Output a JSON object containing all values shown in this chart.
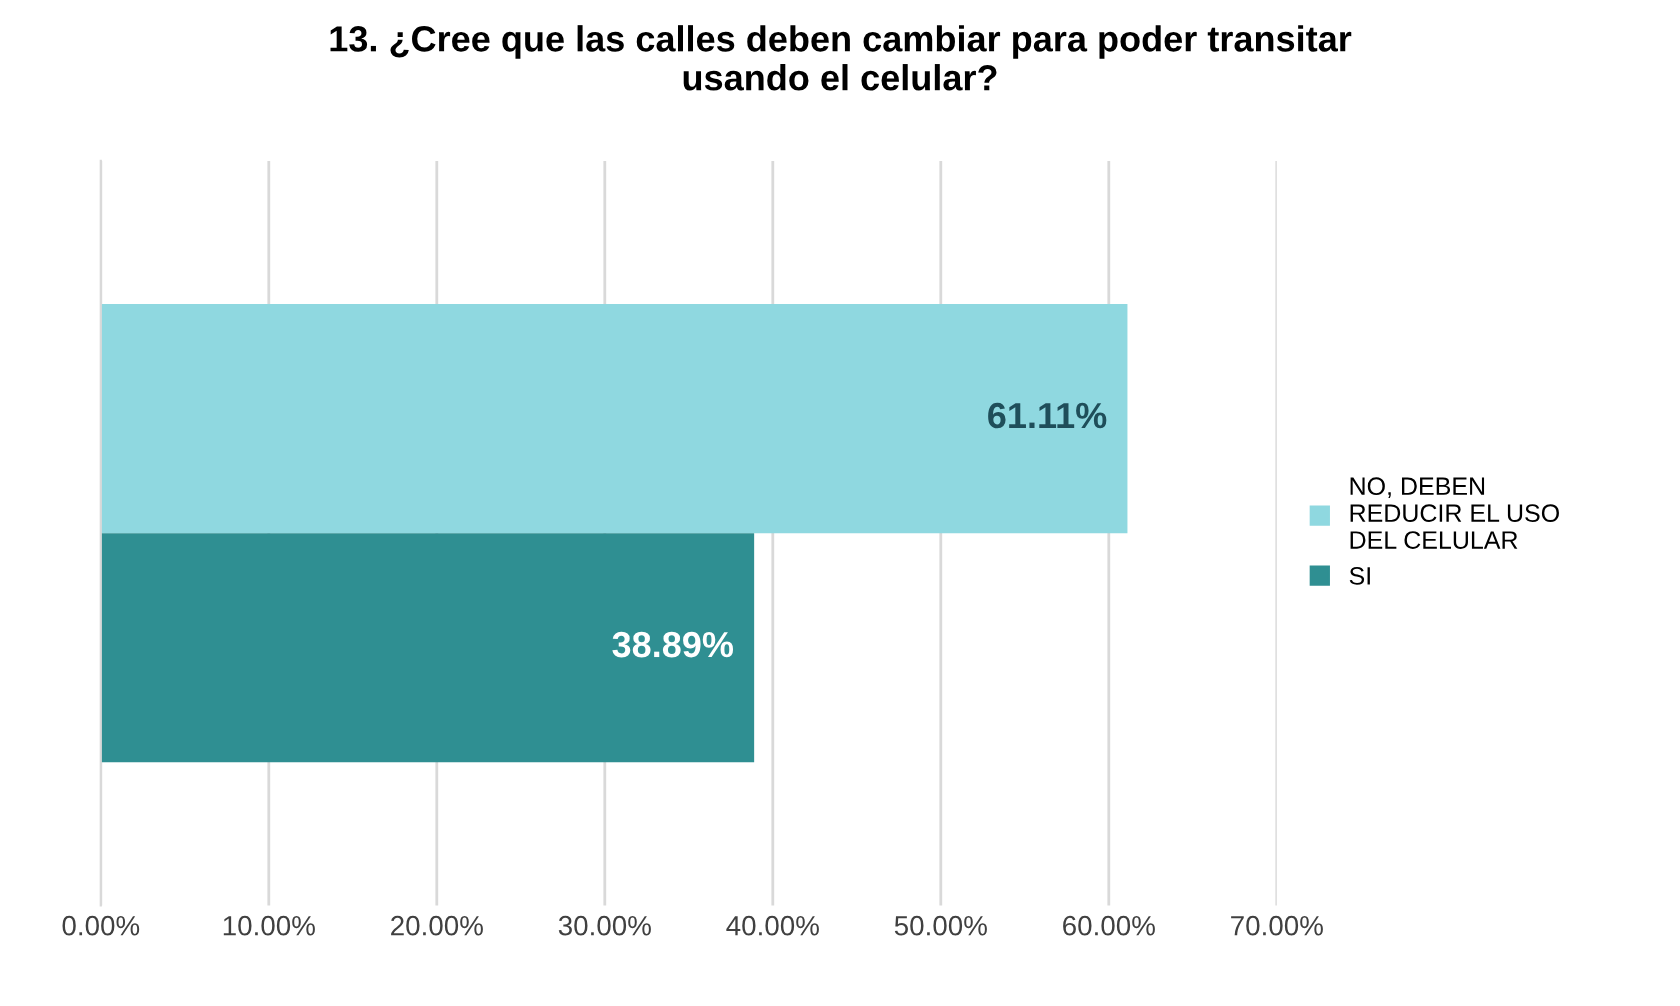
{
  "chart_data": {
    "type": "bar",
    "orientation": "horizontal",
    "title": "13. ¿Cree que las calles deben cambiar para poder transitar usando el celular?",
    "categories": [
      null
    ],
    "series": [
      {
        "name": "NO, DEBEN REDUCIR EL USO DEL CELULAR",
        "color": "#8fd8e0",
        "values": [
          61.11
        ],
        "value_labels": [
          "61.11%"
        ]
      },
      {
        "name": "SI",
        "color": "#2f8f92",
        "values": [
          38.89
        ],
        "value_labels": [
          "38.89%"
        ]
      }
    ],
    "xlim": [
      0,
      70
    ],
    "xticks": [
      {
        "value": 0,
        "label": "0.00%"
      },
      {
        "value": 10,
        "label": "10.00%"
      },
      {
        "value": 20,
        "label": "20.00%"
      },
      {
        "value": 30,
        "label": "30.00%"
      },
      {
        "value": 40,
        "label": "40.00%"
      },
      {
        "value": 50,
        "label": "50.00%"
      },
      {
        "value": 60,
        "label": "60.00%"
      },
      {
        "value": 70,
        "label": "70.00%"
      }
    ],
    "grid": "x",
    "legend": "right"
  }
}
